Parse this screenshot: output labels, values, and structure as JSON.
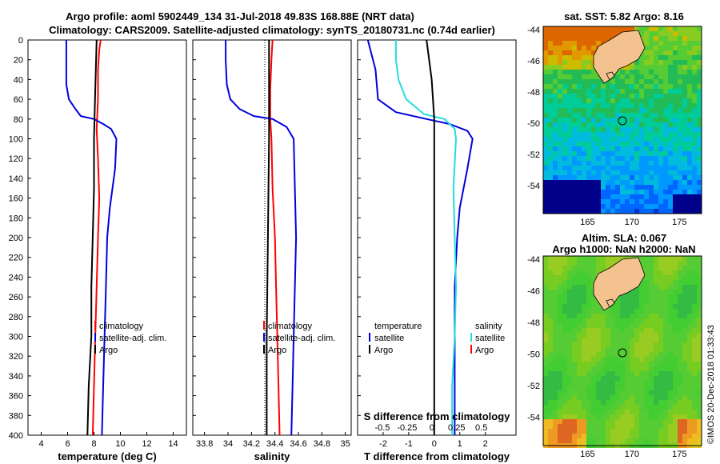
{
  "title": {
    "line1": "Argo profile: aoml 5902449_134 31-Jul-2018 49.83S 168.88E (NRT data)",
    "line2": "Climatology: CARS2009. Satellite-adjusted climatology: synTS_20180731.nc (0.74d earlier)"
  },
  "colors": {
    "climatology": "#ff0000",
    "satellite": "#0000dd",
    "argo": "#000000",
    "satellite_diff": "#22dddd"
  },
  "depth_axis": {
    "range": [
      0,
      400
    ],
    "ticks": [
      0,
      20,
      40,
      60,
      80,
      100,
      120,
      140,
      160,
      180,
      200,
      220,
      240,
      260,
      280,
      300,
      320,
      340,
      360,
      380,
      400
    ]
  },
  "chart_data": [
    {
      "type": "line",
      "name": "temperature",
      "xlabel": "temperature (deg C)",
      "xlim": [
        3,
        15
      ],
      "xticks": [
        4,
        6,
        8,
        10,
        12,
        14
      ],
      "legend": [
        "climatology",
        "satellite-adj. clim.",
        "Argo"
      ],
      "series": [
        {
          "name": "climatology",
          "color": "#ff0000",
          "points": [
            [
              8.5,
              0
            ],
            [
              8.4,
              10
            ],
            [
              8.3,
              30
            ],
            [
              8.3,
              60
            ],
            [
              8.2,
              90
            ],
            [
              8.3,
              120
            ],
            [
              8.4,
              160
            ],
            [
              8.3,
              200
            ],
            [
              8.2,
              250
            ],
            [
              8.1,
              300
            ],
            [
              8.0,
              350
            ],
            [
              7.9,
              400
            ]
          ]
        },
        {
          "name": "satellite-adj. clim.",
          "color": "#0000dd",
          "points": [
            [
              5.9,
              0
            ],
            [
              5.9,
              20
            ],
            [
              5.9,
              45
            ],
            [
              6.1,
              60
            ],
            [
              6.6,
              70
            ],
            [
              7.0,
              77
            ],
            [
              8.0,
              80
            ],
            [
              8.7,
              85
            ],
            [
              9.3,
              90
            ],
            [
              9.7,
              100
            ],
            [
              9.6,
              130
            ],
            [
              9.2,
              170
            ],
            [
              9.0,
              200
            ],
            [
              8.9,
              250
            ],
            [
              8.8,
              300
            ],
            [
              8.7,
              350
            ],
            [
              8.6,
              400
            ]
          ]
        },
        {
          "name": "Argo",
          "color": "#000000",
          "points": [
            [
              8.2,
              0
            ],
            [
              8.1,
              50
            ],
            [
              8.0,
              100
            ],
            [
              8.0,
              150
            ],
            [
              7.9,
              200
            ],
            [
              7.8,
              250
            ],
            [
              7.8,
              300
            ],
            [
              7.6,
              350
            ],
            [
              7.5,
              400
            ]
          ]
        }
      ]
    },
    {
      "type": "line",
      "name": "salinity",
      "xlabel": "salinity",
      "xlim": [
        33.7,
        35.05
      ],
      "xticks": [
        33.8,
        34,
        34.2,
        34.4,
        34.6,
        34.8,
        35
      ],
      "xtick_labels": [
        "33.8",
        "34",
        "34.2",
        "34.4",
        "34.6",
        "34.8",
        "35"
      ],
      "legend": [
        "climatology",
        "satellite-adj. clim.",
        "Argo"
      ],
      "series": [
        {
          "name": "climatology",
          "color": "#ff0000",
          "points": [
            [
              34.38,
              0
            ],
            [
              34.37,
              20
            ],
            [
              34.36,
              50
            ],
            [
              34.36,
              80
            ],
            [
              34.37,
              100
            ],
            [
              34.38,
              150
            ],
            [
              34.4,
              200
            ],
            [
              34.41,
              250
            ],
            [
              34.42,
              300
            ],
            [
              34.43,
              350
            ],
            [
              34.44,
              400
            ]
          ]
        },
        {
          "name": "satellite-adj. clim.",
          "color": "#0000dd",
          "points": [
            [
              33.98,
              0
            ],
            [
              33.98,
              20
            ],
            [
              33.99,
              45
            ],
            [
              34.02,
              60
            ],
            [
              34.1,
              70
            ],
            [
              34.22,
              77
            ],
            [
              34.38,
              80
            ],
            [
              34.5,
              88
            ],
            [
              34.56,
              100
            ],
            [
              34.57,
              150
            ],
            [
              34.58,
              200
            ],
            [
              34.57,
              250
            ],
            [
              34.56,
              300
            ],
            [
              34.55,
              350
            ],
            [
              34.54,
              400
            ]
          ]
        },
        {
          "name": "Argo",
          "color": "#000000",
          "points": [
            [
              34.35,
              0
            ],
            [
              34.35,
              100
            ],
            [
              34.34,
              200
            ],
            [
              34.33,
              300
            ],
            [
              34.33,
              400
            ]
          ]
        }
      ]
    },
    {
      "type": "line",
      "name": "difference",
      "xlabel": "T difference from climatology",
      "xlim": [
        -3,
        3.2
      ],
      "xticks": [
        -2,
        -1,
        0,
        1,
        2
      ],
      "top_axis_label": "S difference from climatology",
      "top_ticks": [
        -0.5,
        -0.25,
        0,
        0.25,
        0.5
      ],
      "top_tick_labels": [
        "-0.5",
        "-0.25",
        "0",
        "0.25",
        "0.5"
      ],
      "legend_temperature": {
        "title": "temperature",
        "items": [
          "satellite",
          "Argo"
        ]
      },
      "legend_salinity": {
        "title": "salinity",
        "items": [
          "satellite",
          "Argo"
        ]
      },
      "series": [
        {
          "name": "T satellite",
          "color": "#0000dd",
          "points": [
            [
              -2.6,
              0
            ],
            [
              -2.5,
              10
            ],
            [
              -2.3,
              30
            ],
            [
              -2.2,
              60
            ],
            [
              -1.5,
              73
            ],
            [
              -0.3,
              80
            ],
            [
              0.6,
              85
            ],
            [
              1.3,
              92
            ],
            [
              1.5,
              100
            ],
            [
              1.3,
              130
            ],
            [
              1.0,
              170
            ],
            [
              0.9,
              200
            ],
            [
              0.8,
              250
            ],
            [
              0.8,
              300
            ],
            [
              0.8,
              350
            ],
            [
              0.8,
              400
            ]
          ]
        },
        {
          "name": "S satellite",
          "color": "#22dddd",
          "points": [
            [
              -1.5,
              0
            ],
            [
              -1.5,
              20
            ],
            [
              -1.4,
              40
            ],
            [
              -1.1,
              60
            ],
            [
              -0.4,
              75
            ],
            [
              0.4,
              80
            ],
            [
              0.8,
              90
            ],
            [
              0.85,
              100
            ],
            [
              0.75,
              150
            ],
            [
              0.8,
              200
            ],
            [
              0.85,
              250
            ],
            [
              0.8,
              300
            ],
            [
              0.7,
              350
            ],
            [
              0.7,
              400
            ]
          ]
        },
        {
          "name": "Argo",
          "color": "#000000",
          "points": [
            [
              -0.3,
              0
            ],
            [
              -0.1,
              40
            ],
            [
              0.0,
              80
            ],
            [
              0.0,
              150
            ],
            [
              0.0,
              250
            ],
            [
              0.0,
              350
            ],
            [
              0.0,
              400
            ]
          ]
        }
      ]
    }
  ],
  "maps": {
    "sst": {
      "title": "sat. SST: 5.82 Argo: 8.16",
      "lat_ticks": [
        "-44",
        "-46",
        "-48",
        "-50",
        "-52",
        "-54"
      ],
      "lon_ticks": [
        "165",
        "170",
        "175"
      ]
    },
    "sla": {
      "title_line1": "Altim. SLA: 0.067",
      "title_line2": "Argo h1000: NaN h2000: NaN",
      "lat_ticks": [
        "-44",
        "-46",
        "-48",
        "-50",
        "-52",
        "-54"
      ],
      "lon_ticks": [
        "165",
        "170",
        "175"
      ]
    },
    "credit": "©IMOS 20-Dec-2018 01:33:43"
  }
}
